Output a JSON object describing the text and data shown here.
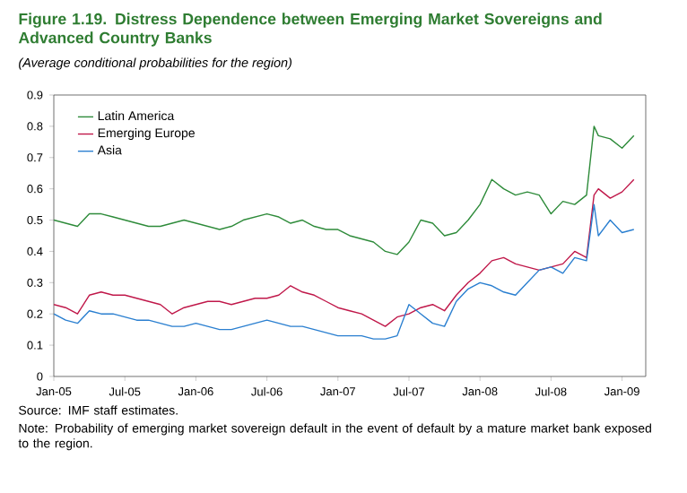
{
  "chart_data": {
    "type": "line",
    "title": "Figure 1.19. Distress Dependence between Emerging Market Sovereigns and Advanced Country Banks",
    "subtitle": "(Average conditional probabilities for the region)",
    "annotations": [
      "Source: IMF staff estimates.",
      "Note: Probability of emerging market sovereign default in the event of default by a mature market bank exposed to the region."
    ],
    "x": [
      "2005-01",
      "2005-02",
      "2005-03",
      "2005-04",
      "2005-05",
      "2005-06",
      "2005-07",
      "2005-08",
      "2005-09",
      "2005-10",
      "2005-11",
      "2005-12",
      "2006-01",
      "2006-02",
      "2006-03",
      "2006-04",
      "2006-05",
      "2006-06",
      "2006-07",
      "2006-08",
      "2006-09",
      "2006-10",
      "2006-11",
      "2006-12",
      "2007-01",
      "2007-02",
      "2007-03",
      "2007-04",
      "2007-05",
      "2007-06",
      "2007-07",
      "2007-08",
      "2007-09",
      "2007-10",
      "2007-11",
      "2007-12",
      "2008-01",
      "2008-02",
      "2008-03",
      "2008-04",
      "2008-05",
      "2008-06",
      "2008-07",
      "2008-08",
      "2008-09",
      "2008-10",
      "2008-10-20",
      "2008-11",
      "2008-12",
      "2009-01",
      "2009-02"
    ],
    "series": [
      {
        "name": "Latin America",
        "color": "#2e8b3a",
        "values": [
          0.5,
          0.49,
          0.48,
          0.52,
          0.52,
          0.51,
          0.5,
          0.49,
          0.48,
          0.48,
          0.49,
          0.5,
          0.49,
          0.48,
          0.47,
          0.48,
          0.5,
          0.51,
          0.52,
          0.51,
          0.49,
          0.5,
          0.48,
          0.47,
          0.47,
          0.45,
          0.44,
          0.43,
          0.4,
          0.39,
          0.43,
          0.5,
          0.49,
          0.45,
          0.46,
          0.5,
          0.55,
          0.63,
          0.6,
          0.58,
          0.59,
          0.58,
          0.52,
          0.56,
          0.55,
          0.58,
          0.8,
          0.77,
          0.76,
          0.73,
          0.77
        ]
      },
      {
        "name": "Emerging Europe",
        "color": "#c0184a",
        "values": [
          0.23,
          0.22,
          0.2,
          0.26,
          0.27,
          0.26,
          0.26,
          0.25,
          0.24,
          0.23,
          0.2,
          0.22,
          0.23,
          0.24,
          0.24,
          0.23,
          0.24,
          0.25,
          0.25,
          0.26,
          0.29,
          0.27,
          0.26,
          0.24,
          0.22,
          0.21,
          0.2,
          0.18,
          0.16,
          0.19,
          0.2,
          0.22,
          0.23,
          0.21,
          0.26,
          0.3,
          0.33,
          0.37,
          0.38,
          0.36,
          0.35,
          0.34,
          0.35,
          0.36,
          0.4,
          0.38,
          0.58,
          0.6,
          0.57,
          0.59,
          0.63
        ]
      },
      {
        "name": "Asia",
        "color": "#2a7fd0",
        "values": [
          0.2,
          0.18,
          0.17,
          0.21,
          0.2,
          0.2,
          0.19,
          0.18,
          0.18,
          0.17,
          0.16,
          0.16,
          0.17,
          0.16,
          0.15,
          0.15,
          0.16,
          0.17,
          0.18,
          0.17,
          0.16,
          0.16,
          0.15,
          0.14,
          0.13,
          0.13,
          0.13,
          0.12,
          0.12,
          0.13,
          0.23,
          0.2,
          0.17,
          0.16,
          0.24,
          0.28,
          0.3,
          0.29,
          0.27,
          0.26,
          0.3,
          0.34,
          0.35,
          0.33,
          0.38,
          0.37,
          0.55,
          0.45,
          0.5,
          0.46,
          0.47
        ]
      }
    ],
    "xlim": [
      "2005-01",
      "2009-03"
    ],
    "xticks": [
      {
        "value": "2005-01",
        "label": "Jan-05"
      },
      {
        "value": "2005-07",
        "label": "Jul-05"
      },
      {
        "value": "2006-01",
        "label": "Jan-06"
      },
      {
        "value": "2006-07",
        "label": "Jul-06"
      },
      {
        "value": "2007-01",
        "label": "Jan-07"
      },
      {
        "value": "2007-07",
        "label": "Jul-07"
      },
      {
        "value": "2008-01",
        "label": "Jan-08"
      },
      {
        "value": "2008-07",
        "label": "Jul-08"
      },
      {
        "value": "2009-01",
        "label": "Jan-09"
      }
    ],
    "ylim": [
      0,
      0.9
    ],
    "yticks": [
      0,
      0.1,
      0.2,
      0.3,
      0.4,
      0.5,
      0.6,
      0.7,
      0.8,
      0.9
    ],
    "legend": "top left",
    "grid": false,
    "marker": "none",
    "line_style": "solid"
  }
}
